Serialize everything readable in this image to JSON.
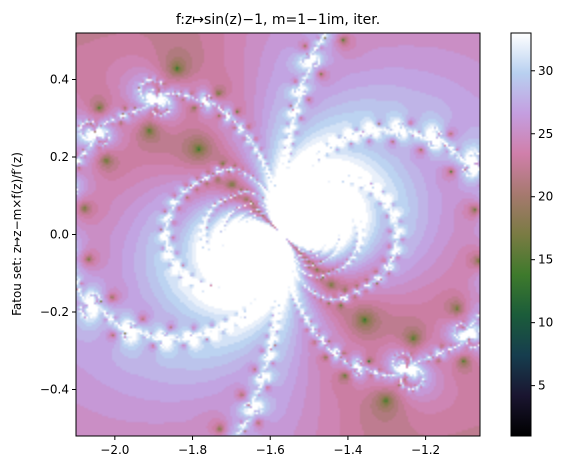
{
  "chart_data": {
    "type": "heatmap",
    "title": "f:z↦sin(z)−1, m=1−1im, iter.",
    "ylabel": "Fatou set: z↦z−m×f(z)/f′(z)",
    "xlabel": "",
    "x_range": [
      -2.1,
      -1.06
    ],
    "y_range": [
      -0.52,
      0.52
    ],
    "x_ticks": [
      -2.0,
      -1.8,
      -1.6,
      -1.4,
      -1.2
    ],
    "x_tick_labels": [
      "−2.0",
      "−1.8",
      "−1.6",
      "−1.4",
      "−1.2"
    ],
    "y_ticks": [
      -0.4,
      -0.2,
      0.0,
      0.2,
      0.4
    ],
    "y_tick_labels": [
      "−0.4",
      "−0.2",
      "0.0",
      "0.2",
      "0.4"
    ],
    "colorbar": {
      "colormap": "cubehelix",
      "range": [
        1,
        33
      ],
      "ticks": [
        5,
        10,
        15,
        20,
        25,
        30
      ],
      "tick_labels": [
        "5",
        "10",
        "15",
        "20",
        "25",
        "30"
      ]
    },
    "grid": false,
    "fractal": {
      "function": "sin(z) - 1",
      "relaxation_re": 1,
      "relaxation_im": -1
    }
  }
}
